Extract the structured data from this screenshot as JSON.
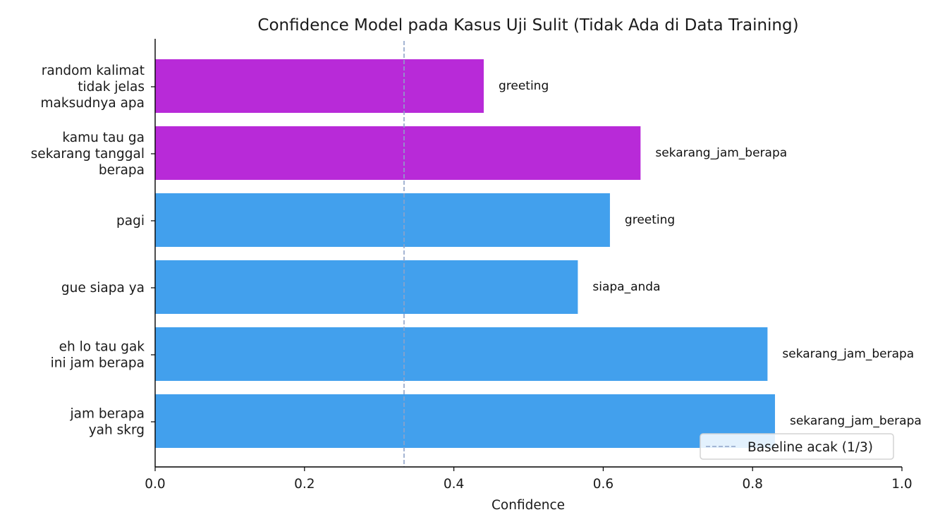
{
  "chart_data": {
    "type": "bar",
    "orientation": "horizontal",
    "title": "Confidence Model pada Kasus Uji Sulit (Tidak Ada di Data Training)",
    "xlabel": "Confidence",
    "ylabel": "",
    "xlim": [
      0,
      1
    ],
    "xticks": [
      "0.0",
      "0.2",
      "0.4",
      "0.6",
      "0.8",
      "1.0"
    ],
    "grid": false,
    "legend_position": "bottom-right",
    "categories": [
      [
        "random kalimat",
        "tidak jelas",
        "maksudnya apa"
      ],
      [
        "kamu tau ga",
        "sekarang tanggal",
        "berapa"
      ],
      [
        "pagi"
      ],
      [
        "gue siapa ya"
      ],
      [
        "eh lo tau gak",
        "ini jam berapa"
      ],
      [
        "jam berapa",
        "yah skrg"
      ]
    ],
    "values": [
      0.44,
      0.65,
      0.609,
      0.566,
      0.82,
      0.83
    ],
    "predicted_labels": [
      "greeting",
      "sekarang_jam_berapa",
      "greeting",
      "siapa_anda",
      "sekarang_jam_berapa",
      "sekarang_jam_berapa"
    ],
    "bar_colors": [
      "#b82ad8",
      "#b82ad8",
      "#42a0ed",
      "#42a0ed",
      "#42a0ed",
      "#42a0ed"
    ],
    "baseline": {
      "value": 0.3333,
      "label": "Baseline acak (1/3)",
      "color": "#8fa3c8",
      "style": "dashed"
    }
  }
}
